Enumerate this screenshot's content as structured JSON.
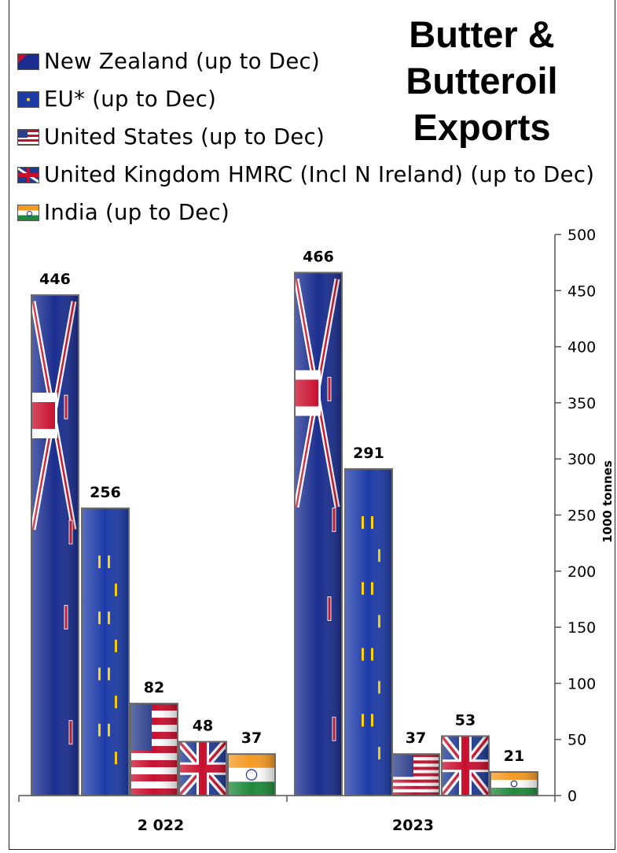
{
  "title": "Butter & Butteroil Exports",
  "title_lines": [
    "Butter &",
    "Butteroil",
    "Exports"
  ],
  "colors": {
    "nz_blue": "#1b2e8f",
    "nz_red": "#c8102e",
    "eu_blue": "#1e3ca8",
    "eu_star": "#ffd200",
    "us_red": "#c8102e",
    "us_blue": "#2c3f8c",
    "uk_blue": "#1f3a93",
    "uk_red": "#c8102e",
    "in_saffron": "#f59a23",
    "in_green": "#1f8a3a"
  },
  "chart_data": {
    "type": "bar",
    "title": "Butter & Butteroil Exports",
    "ylabel": "1000 tonnes",
    "xlabel": "",
    "ylim": [
      0,
      500
    ],
    "yticks": [
      0,
      50,
      100,
      150,
      200,
      250,
      300,
      350,
      400,
      450,
      500
    ],
    "y_axis_position": "right",
    "legend_position": "top-left",
    "grid": false,
    "categories": [
      "2 022",
      "2023"
    ],
    "series": [
      {
        "name": "New Zealand (up to Dec)",
        "flag": "nz-flag-icon",
        "values": [
          446,
          466
        ]
      },
      {
        "name": "EU* (up to Dec)",
        "flag": "eu-flag-icon",
        "values": [
          256,
          291
        ]
      },
      {
        "name": "United States (up to Dec)",
        "flag": "us-flag-icon",
        "values": [
          82,
          37
        ]
      },
      {
        "name": "United Kingdom HMRC (Incl N Ireland) (up to Dec)",
        "flag": "uk-flag-icon",
        "values": [
          48,
          53
        ]
      },
      {
        "name": "India (up to Dec)",
        "flag": "india-flag-icon",
        "values": [
          37,
          21
        ]
      }
    ]
  }
}
